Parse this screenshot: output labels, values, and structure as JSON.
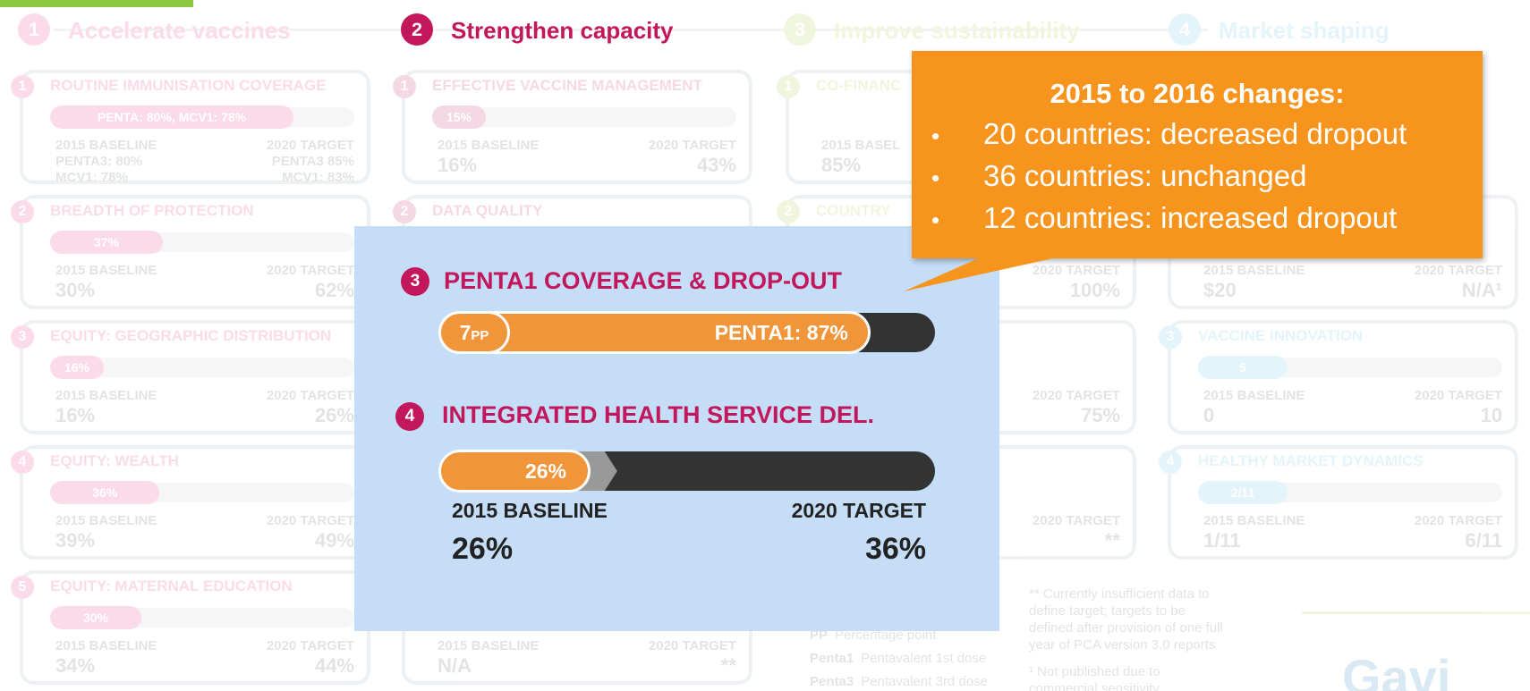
{
  "steps": [
    {
      "number": "1",
      "title": "Accelerate vaccines",
      "color": "#e8287a",
      "active": false
    },
    {
      "number": "2",
      "title": "Strengthen capacity",
      "color": "#c2185b",
      "active": true
    },
    {
      "number": "3",
      "title": "Improve sustainability",
      "color": "#a6ce39",
      "active": false
    },
    {
      "number": "4",
      "title": "Market shaping",
      "color": "#5bc0eb",
      "active": false
    }
  ],
  "columns": [
    {
      "cards": [
        {
          "number": "1",
          "title": "ROUTINE IMMUNISATION COVERAGE",
          "bar": {
            "value": 80,
            "label": "PENTA: 80%, MCV1: 78%"
          },
          "baseline_label": "2015 BASELINE",
          "baseline": [
            "PENTA3: 80%",
            "MCV1: 78%"
          ],
          "target_label": "2020 TARGET",
          "target": [
            "PENTA3 85%",
            "MCV1: 83%"
          ]
        },
        {
          "number": "2",
          "title": "BREADTH OF PROTECTION",
          "bar": {
            "value": 37,
            "label": "37%"
          },
          "baseline_label": "2015 BASELINE",
          "baseline": [
            "30%"
          ],
          "target_label": "2020 TARGET",
          "target": [
            "62%"
          ]
        },
        {
          "number": "3",
          "title": "EQUITY: GEOGRAPHIC DISTRIBUTION",
          "bar": {
            "value": 16,
            "label": "16%"
          },
          "baseline_label": "2015 BASELINE",
          "baseline": [
            "16%"
          ],
          "target_label": "2020 TARGET",
          "target": [
            "26%"
          ]
        },
        {
          "number": "4",
          "title": "EQUITY: WEALTH",
          "bar": {
            "value": 36,
            "label": "36%"
          },
          "baseline_label": "2015 BASELINE",
          "baseline": [
            "39%"
          ],
          "target_label": "2020 TARGET",
          "target": [
            "49%"
          ]
        },
        {
          "number": "5",
          "title": "EQUITY: MATERNAL EDUCATION",
          "bar": {
            "value": 30,
            "label": "30%"
          },
          "baseline_label": "2015 BASELINE",
          "baseline": [
            "34%"
          ],
          "target_label": "2020 TARGET",
          "target": [
            "44%"
          ]
        }
      ]
    },
    {
      "cards": [
        {
          "number": "1",
          "title": "EFFECTIVE VACCINE MANAGEMENT",
          "bar": {
            "value": 15,
            "label": "15%"
          },
          "baseline_label": "2015 BASELINE",
          "baseline": [
            "16%"
          ],
          "target_label": "2020 TARGET",
          "target": [
            "43%"
          ]
        },
        {
          "number": "2",
          "title": "DATA QUALITY"
        },
        {
          "baseline_label": "2015 BASELINE",
          "baseline": [
            "N/A"
          ],
          "target_label": "2020 TARGET",
          "target": [
            "**"
          ]
        }
      ]
    },
    {
      "cards": [
        {
          "number": "1",
          "title": "CO-FINANC",
          "baseline_label": "2015 BASEL",
          "baseline": [
            "85%"
          ]
        },
        {
          "number": "2",
          "title": "COUNTRY",
          "target_label": "2020 TARGET",
          "target": [
            "100%"
          ]
        },
        {
          "target_label": "2020 TARGET",
          "target": [
            "75%"
          ]
        },
        {
          "target_label": "2020 TARGET",
          "target": [
            "**"
          ]
        }
      ]
    },
    {
      "cards": [
        {
          "baseline_label": "2015 BASELINE",
          "baseline": [
            "$20"
          ],
          "target_label": "2020 TARGET",
          "target": [
            "N/A¹"
          ]
        },
        {
          "number": "3",
          "title": "VACCINE INNOVATION",
          "bar": {
            "label": "5"
          },
          "baseline_label": "2015 BASELINE",
          "baseline": [
            "0"
          ],
          "target_label": "2020 TARGET",
          "target": [
            "10"
          ]
        },
        {
          "number": "4",
          "title": "HEALTHY MARKET DYNAMICS",
          "bar": {
            "label": "2/11"
          },
          "baseline_label": "2015 BASELINE",
          "baseline": [
            "1/11"
          ],
          "target_label": "2020 TARGET",
          "target": [
            "6/11"
          ]
        }
      ]
    }
  ],
  "legend": [
    {
      "abbr": "PP",
      "text": "Percentage point"
    },
    {
      "abbr": "Penta1",
      "text": "Pentavalent 1st dose"
    },
    {
      "abbr": "Penta3",
      "text": "Pentavalent 3rd dose"
    }
  ],
  "notes": [
    "** Currently insufficient data to define target; targets to be defined after provision of one full year of PCA version 3.0 reports",
    "¹ Not published due to commercial sensitivity"
  ],
  "logo": "Gavi",
  "panel": {
    "sections": [
      {
        "number": "3",
        "title": "PENTA1 COVERAGE & DROP-OUT",
        "dropout": {
          "value": 7,
          "label": "7",
          "unit": "PP"
        },
        "coverage": {
          "value": 87,
          "label": "PENTA1: 87%"
        }
      },
      {
        "number": "4",
        "title": "INTEGRATED HEALTH SERVICE DEL.",
        "bar": {
          "value": 26,
          "label": "26%"
        },
        "baseline_label": "2015 BASELINE",
        "baseline": {
          "value": 26,
          "label": "26%"
        },
        "target_label": "2020 TARGET",
        "target": {
          "value": 36,
          "label": "36%"
        }
      }
    ]
  },
  "callout": {
    "title": "2015 to 2016 changes:",
    "items": [
      "20 countries: decreased dropout",
      "36 countries: unchanged",
      "12 countries: increased dropout"
    ]
  }
}
